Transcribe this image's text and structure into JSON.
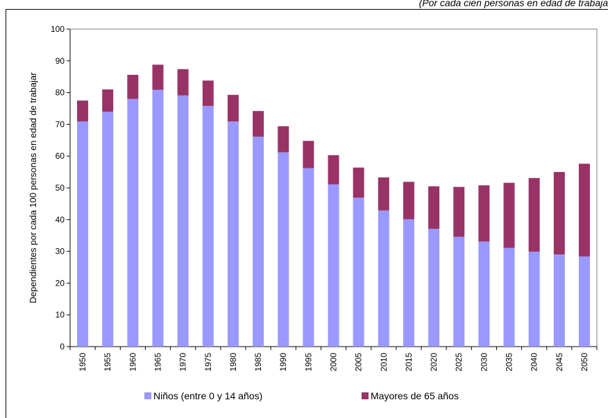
{
  "top_note": "(Por cada cien personas en edad de trabaja",
  "chart_data": {
    "type": "bar",
    "stacked": true,
    "ylabel": "Dependientes por cada 100 personas en edad de trabajar",
    "ylim": [
      0,
      100
    ],
    "yticks": [
      0,
      10,
      20,
      30,
      40,
      50,
      60,
      70,
      80,
      90,
      100
    ],
    "categories": [
      "1950",
      "1955",
      "1960",
      "1965",
      "1970",
      "1975",
      "1980",
      "1985",
      "1990",
      "1995",
      "2000",
      "2005",
      "2010",
      "2015",
      "2020",
      "2025",
      "2030",
      "2035",
      "2040",
      "2045",
      "2050"
    ],
    "series": [
      {
        "name": "Niños (entre 0 y 14 años)",
        "color": "#9999ff",
        "values": [
          70.9,
          74.0,
          78.0,
          80.9,
          79.1,
          75.8,
          70.9,
          66.1,
          61.2,
          56.2,
          51.1,
          46.9,
          42.9,
          40.1,
          37.1,
          34.6,
          33.1,
          31.1,
          29.9,
          29.0,
          28.4
        ]
      },
      {
        "name": "Mayores de 65 años",
        "color": "#993366",
        "values": [
          6.6,
          7.0,
          7.6,
          7.9,
          8.3,
          8.0,
          8.4,
          8.1,
          8.2,
          8.6,
          9.2,
          9.5,
          10.4,
          11.8,
          13.4,
          15.7,
          17.7,
          20.5,
          23.2,
          26.0,
          29.2
        ]
      }
    ],
    "grid": false,
    "legend": "bottom"
  }
}
